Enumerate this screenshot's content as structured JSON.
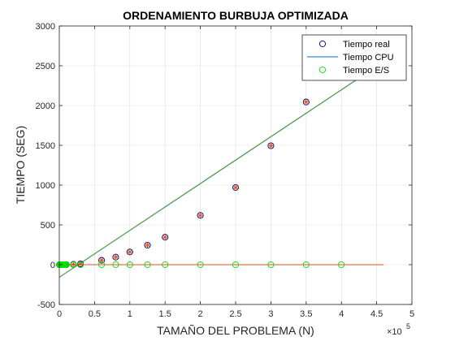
{
  "chart_data": {
    "type": "scatter",
    "title": "ORDENAMIENTO BURBUJA OPTIMIZADA",
    "xlabel": "TAMAÑO DEL PROBLEMA (N)",
    "ylabel": "TIEMPO (SEG)",
    "x_exponent_label": "×10",
    "x_exponent_power": "5",
    "x_scale": 100000,
    "xlim": [
      0,
      500000
    ],
    "ylim": [
      -500,
      3000
    ],
    "x_ticks": [
      0,
      50000,
      100000,
      150000,
      200000,
      250000,
      300000,
      350000,
      400000,
      450000,
      500000
    ],
    "x_tick_labels": [
      "0",
      "0.5",
      "1",
      "1.5",
      "2",
      "2.5",
      "3",
      "3.5",
      "4",
      "4.5",
      "5"
    ],
    "y_ticks": [
      -500,
      0,
      500,
      1000,
      1500,
      2000,
      2500,
      3000
    ],
    "y_tick_labels": [
      "-500",
      "0",
      "500",
      "1000",
      "1500",
      "2000",
      "2500",
      "3000"
    ],
    "grid": true,
    "legend_position": "top-right",
    "legend": [
      {
        "label": "Tiempo real",
        "style": "marker",
        "color": "#00008b"
      },
      {
        "label": "Tiempo CPU",
        "style": "line",
        "color": "#0072bd"
      },
      {
        "label": "Tiempo E/S",
        "style": "marker",
        "color": "#00e000"
      }
    ],
    "series": [
      {
        "name": "Tiempo real",
        "kind": "markers-circle",
        "color": "#00008b",
        "x": [
          100,
          1000,
          2000,
          3000,
          4000,
          5000,
          6000,
          7000,
          8000,
          9000,
          10000,
          20000,
          30000,
          60000,
          80000,
          100000,
          125000,
          150000,
          200000,
          250000,
          300000,
          350000
        ],
        "y": [
          0,
          0,
          0,
          0,
          0,
          0,
          0,
          0,
          0,
          0,
          0,
          4,
          10,
          55,
          95,
          160,
          245,
          345,
          620,
          970,
          1495,
          2045
        ]
      },
      {
        "name": "Tiempo CPU",
        "kind": "markers-star",
        "color": "#d95319",
        "x": [
          100,
          1000,
          2000,
          3000,
          4000,
          5000,
          6000,
          7000,
          8000,
          9000,
          10000,
          20000,
          30000,
          60000,
          80000,
          100000,
          125000,
          150000,
          200000,
          250000,
          300000,
          350000
        ],
        "y": [
          0,
          0,
          0,
          0,
          0,
          0,
          0,
          0,
          0,
          0,
          0,
          4,
          10,
          55,
          95,
          160,
          245,
          345,
          620,
          970,
          1495,
          2045
        ]
      },
      {
        "name": "Tiempo E/S",
        "kind": "markers-circle",
        "color": "#00e000",
        "x": [
          100,
          1000,
          2000,
          3000,
          4000,
          5000,
          6000,
          7000,
          8000,
          9000,
          10000,
          20000,
          30000,
          60000,
          80000,
          100000,
          125000,
          150000,
          200000,
          250000,
          300000,
          350000,
          400000
        ],
        "y": [
          0,
          0,
          0,
          0,
          0,
          0,
          0,
          0,
          0,
          0,
          0,
          0,
          0,
          0,
          0,
          0,
          0,
          0,
          0,
          0,
          0,
          0,
          0
        ]
      },
      {
        "name": "Tiempo CPU",
        "kind": "line",
        "color": "#0072bd",
        "x": [
          0,
          455000
        ],
        "y": [
          -160,
          2520
        ]
      },
      {
        "kind": "line",
        "color": "#77ac30",
        "x": [
          0,
          455000
        ],
        "y": [
          -155,
          2525
        ]
      },
      {
        "kind": "line",
        "color": "#d95319",
        "x": [
          0,
          460000
        ],
        "y": [
          0,
          0
        ]
      }
    ]
  }
}
